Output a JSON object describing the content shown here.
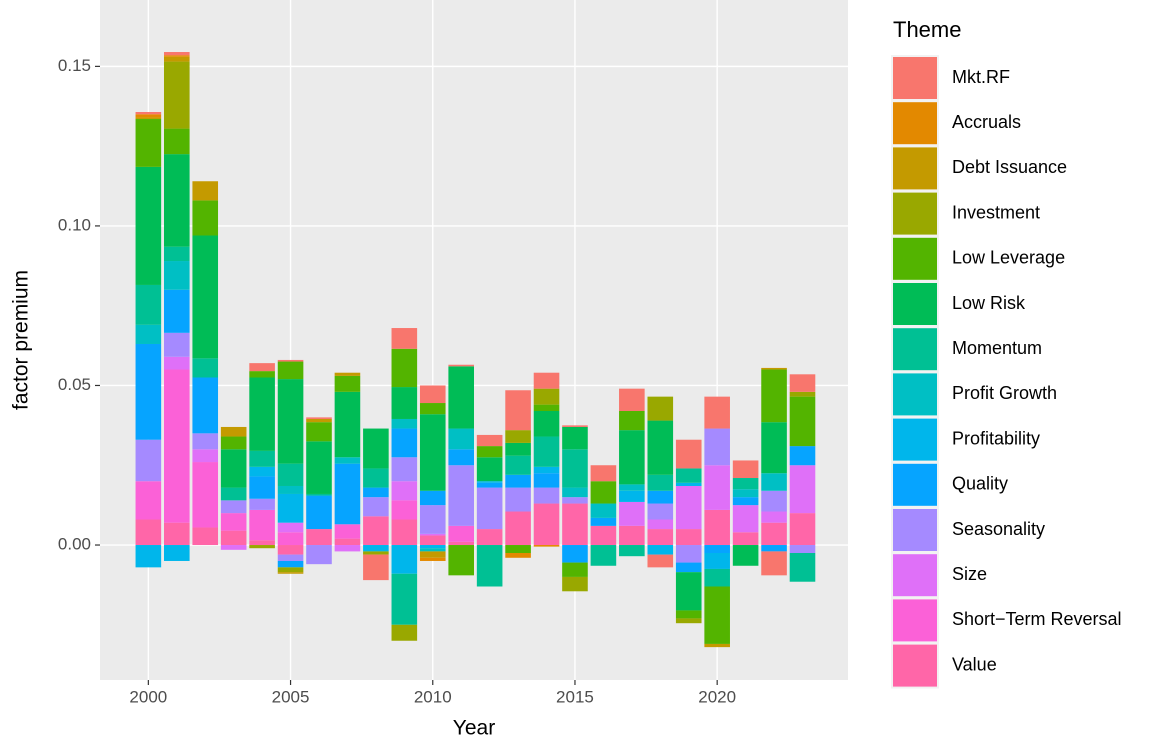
{
  "chart_data": {
    "type": "stacked_bar",
    "x_label": "Year",
    "y_label": "factor premium",
    "legend_title": "Theme",
    "legend_position": "right",
    "grid": true,
    "xlim": [
      1998.3,
      2024.6
    ],
    "xticks": [
      2000,
      2005,
      2010,
      2015,
      2020
    ],
    "ylim": [
      -0.0423,
      0.1708
    ],
    "yticks": [
      {
        "value": 0,
        "label": "0.00"
      },
      {
        "value": 0.05,
        "label": "0.05"
      },
      {
        "value": 0.1,
        "label": "0.10"
      },
      {
        "value": 0.15,
        "label": "0.15"
      }
    ],
    "x": [
      2000,
      2001,
      2002,
      2003,
      2004,
      2005,
      2006,
      2007,
      2008,
      2009,
      2010,
      2011,
      2012,
      2013,
      2014,
      2015,
      2016,
      2017,
      2018,
      2019,
      2020,
      2021,
      2022,
      2023
    ],
    "series": [
      {
        "name": "Mkt.RF",
        "color": "#F8766D",
        "values": [
          0.0007,
          0.001,
          0,
          0,
          0.0025,
          0.0005,
          0.0005,
          0,
          -0.008,
          0.0065,
          0.0055,
          0.0005,
          0.0035,
          0.0125,
          0.005,
          0.0005,
          0.005,
          0.007,
          -0.004,
          0.009,
          0.01,
          0.0055,
          -0.0075,
          0.0055
        ]
      },
      {
        "name": "Accruals",
        "color": "#E38900",
        "values": [
          0.001,
          0.0005,
          0,
          0,
          0,
          0,
          0,
          0,
          0,
          0,
          -0.001,
          0,
          0,
          -0.0015,
          -0.0005,
          0,
          0,
          0,
          0,
          0,
          0,
          0,
          0,
          0
        ]
      },
      {
        "name": "Debt Issuance",
        "color": "#C49A00",
        "values": [
          0.0005,
          0.0015,
          0.006,
          0.003,
          0,
          -0.0005,
          0.001,
          0.001,
          0,
          0,
          -0.002,
          0,
          0,
          0,
          0,
          0,
          0,
          0,
          0,
          0,
          -0.001,
          0,
          0.0005,
          0
        ]
      },
      {
        "name": "Investment",
        "color": "#99A800",
        "values": [
          0,
          0.021,
          0,
          0,
          -0.001,
          -0.0015,
          0,
          0,
          -0.001,
          -0.005,
          0,
          0,
          0,
          0.004,
          0.005,
          -0.0045,
          0,
          0,
          0.0075,
          -0.0015,
          0,
          0,
          0,
          0.0015
        ]
      },
      {
        "name": "Low Leverage",
        "color": "#53B400",
        "values": [
          0.015,
          0.008,
          0.011,
          0.004,
          0.002,
          0.0055,
          0.006,
          0.005,
          0,
          0.012,
          0.0035,
          -0.0095,
          0.0035,
          -0.0025,
          0.002,
          -0.0045,
          0.007,
          0.006,
          0,
          -0.0025,
          -0.018,
          0,
          0.0165,
          0.0155
        ]
      },
      {
        "name": "Low Risk",
        "color": "#00BC56",
        "values": [
          0.037,
          0.029,
          0.0385,
          0.012,
          0.023,
          0.0265,
          0.0165,
          0.0205,
          0.0125,
          0.01,
          0.024,
          0.0195,
          0.0075,
          0.004,
          0.008,
          0.007,
          0,
          0.017,
          0.017,
          -0.012,
          0,
          -0.0065,
          0.016,
          0
        ]
      },
      {
        "name": "Momentum",
        "color": "#00C094",
        "values": [
          0.0125,
          0.0045,
          0.006,
          0.004,
          0.005,
          0.007,
          0.0005,
          0,
          0.006,
          -0.016,
          0,
          0,
          -0.013,
          0.006,
          0.0095,
          0.012,
          -0.0065,
          -0.0035,
          0.005,
          0.0045,
          -0.0055,
          0.0035,
          0,
          -0.009
        ]
      },
      {
        "name": "Profit Growth",
        "color": "#00BFC4",
        "values": [
          0.006,
          0.009,
          0,
          0,
          0,
          0.0025,
          0,
          0.002,
          0,
          0.003,
          -0.001,
          0.0065,
          0,
          0,
          0,
          0.003,
          0.0045,
          0.002,
          0,
          0,
          0,
          0.0025,
          0.0055,
          0
        ]
      },
      {
        "name": "Profitability",
        "color": "#00B6EB",
        "values": [
          -0.007,
          -0.005,
          0,
          0,
          0.003,
          0.009,
          0,
          0,
          -0.002,
          -0.009,
          -0.001,
          0,
          0.0005,
          0,
          0.002,
          0,
          0,
          0.0035,
          -0.003,
          0.001,
          -0.005,
          0,
          0,
          0
        ]
      },
      {
        "name": "Quality",
        "color": "#06A4FF",
        "values": [
          0.03,
          0.0135,
          0.0175,
          0,
          0.007,
          -0.002,
          0.0105,
          0.019,
          0.003,
          0.009,
          0.0045,
          0.005,
          0.0015,
          0.004,
          0.0045,
          -0.0055,
          0.0025,
          0,
          0.004,
          -0.003,
          -0.0025,
          0.0025,
          -0.002,
          0.006
        ]
      },
      {
        "name": "Seasonality",
        "color": "#A58AFF",
        "values": [
          0.013,
          0.0075,
          0.005,
          0.004,
          0.0035,
          -0.002,
          -0.006,
          0,
          0.006,
          0.0075,
          0.009,
          0.019,
          0.013,
          0.0075,
          0.005,
          0.002,
          0,
          0,
          0.005,
          -0.0055,
          0.0115,
          0,
          0.0065,
          -0.0025
        ]
      },
      {
        "name": "Size",
        "color": "#DF70F8",
        "values": [
          0,
          0.004,
          0.004,
          -0.0015,
          0,
          0.003,
          0,
          -0.002,
          0,
          0.006,
          0.0005,
          0,
          0,
          0,
          0,
          0,
          0,
          0.0075,
          0.003,
          0.0135,
          0.014,
          0.0085,
          0.0035,
          0.015
        ]
      },
      {
        "name": "Short−Term Reversal",
        "color": "#FB61D7",
        "values": [
          0.012,
          0.048,
          0.0205,
          0.0055,
          0.0095,
          0.004,
          0,
          0.0045,
          0,
          0.006,
          0,
          0.005,
          0,
          0,
          0,
          0,
          0,
          0,
          0,
          0,
          0,
          0,
          0,
          0
        ]
      },
      {
        "name": "Value",
        "color": "#FF66A8",
        "values": [
          0.008,
          0.007,
          0.0055,
          0.0045,
          0.0015,
          -0.003,
          0.005,
          0.002,
          0.009,
          0.008,
          0.003,
          0.001,
          0.005,
          0.0105,
          0.013,
          0.013,
          0.006,
          0.006,
          0.005,
          0.005,
          0.011,
          0.004,
          0.007,
          0.01
        ]
      }
    ]
  }
}
